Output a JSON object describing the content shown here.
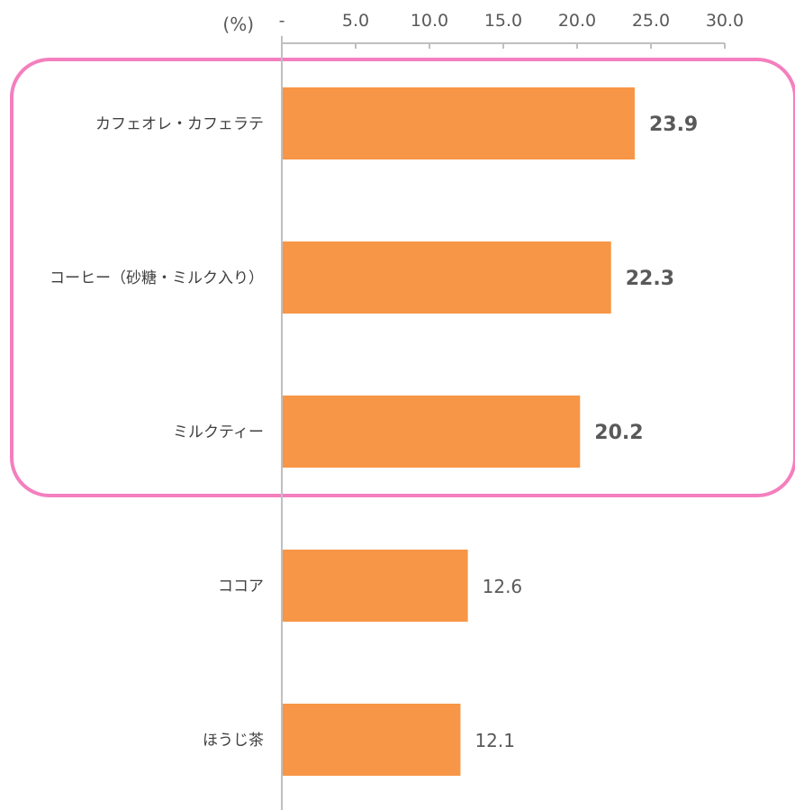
{
  "chart_data": {
    "type": "bar",
    "orientation": "horizontal",
    "unit_label": "(%)",
    "xlim": [
      0,
      30
    ],
    "ticks": [
      {
        "value": 0,
        "label": "-"
      },
      {
        "value": 5,
        "label": "5.0"
      },
      {
        "value": 10,
        "label": "10.0"
      },
      {
        "value": 15,
        "label": "15.0"
      },
      {
        "value": 20,
        "label": "20.0"
      },
      {
        "value": 25,
        "label": "25.0"
      },
      {
        "value": 30,
        "label": "30.0"
      }
    ],
    "categories": [
      "カフェオレ・カフェラテ",
      "コーヒー（砂糖・ミルク入り）",
      "ミルクティー",
      "ココア",
      "ほうじ茶"
    ],
    "values": [
      23.9,
      22.3,
      20.2,
      12.6,
      12.1
    ],
    "value_labels": [
      "23.9",
      "22.3",
      "20.2",
      "12.6",
      "12.1"
    ],
    "highlighted": [
      true,
      true,
      true,
      false,
      false
    ],
    "colors": {
      "bar": "#F79646",
      "highlight_box": "#F47FBE",
      "highlight_label": "#FF0000",
      "label": "#595959",
      "axis": "#BFBFBF"
    }
  }
}
